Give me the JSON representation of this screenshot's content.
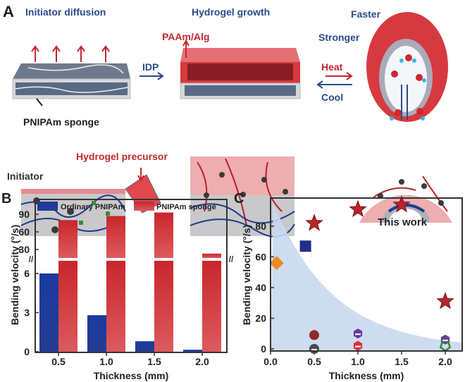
{
  "panel_a": {
    "letter": "A",
    "initiator_diffusion": "Initiator diffusion",
    "hydrogel_growth": "Hydrogel growth",
    "faster": "Faster",
    "stronger": "Stronger",
    "paam_alg": "PAAm/Alg",
    "idp": "IDP",
    "heat": "Heat",
    "cool": "Cool",
    "pnipam_sponge": "PNIPAm sponge",
    "hydrogel_precursor": "Hydrogel precursor",
    "initiator": "Initiator",
    "colors": {
      "blue_text": "#2a4a8c",
      "red_text": "#c0282d",
      "hydrogel": "#e8a0a3",
      "sponge": "#c8c8cc"
    }
  },
  "chart_data": [
    {
      "panel": "B",
      "type": "bar",
      "xlabel": "Thickness (mm)",
      "ylabel": "Bending velocity (°/s)",
      "categories": [
        "0.5",
        "1.0",
        "1.5",
        "2.0"
      ],
      "y_axis_break": true,
      "lower_range": [
        0,
        7
      ],
      "upper_range": [
        15,
        100
      ],
      "lower_ticks": [
        "0",
        "3",
        "6"
      ],
      "upper_ticks": [
        "30",
        "60",
        "90"
      ],
      "legend_position": "top",
      "series": [
        {
          "name": "Ordinary PNIPAm",
          "color": "#1e3a9a",
          "values": [
            6.0,
            2.8,
            0.8,
            0.15
          ]
        },
        {
          "name": "PNIPAm sponge",
          "color": "#d23a3e",
          "values": [
            80,
            87,
            93,
            23
          ]
        }
      ]
    },
    {
      "panel": "C",
      "type": "scatter",
      "xlabel": "Thickness (mm)",
      "ylabel": "Bending velocity (°/s)",
      "xlim": [
        0,
        2.2
      ],
      "ylim": [
        -1.5,
        98
      ],
      "x_ticks": [
        "0.0",
        "0.5",
        "1.0",
        "1.5",
        "2.0"
      ],
      "y_ticks": [
        "0",
        "20",
        "40",
        "60",
        "80"
      ],
      "annotation": "This work",
      "shaded_region_color": "#c9d8ee",
      "series": [
        {
          "marker": "star",
          "color": "#b8242a",
          "points": [
            [
              0.5,
              82
            ],
            [
              1.0,
              91
            ],
            [
              1.5,
              94
            ],
            [
              2.0,
              31
            ]
          ]
        },
        {
          "marker": "square",
          "color": "#1f2f8a",
          "points": [
            [
              0.4,
              67
            ]
          ]
        },
        {
          "marker": "diamond",
          "color": "#f08a24",
          "points": [
            [
              0.07,
              56
            ]
          ]
        },
        {
          "marker": "circle",
          "color": "#8f2a2a",
          "points": [
            [
              0.5,
              9
            ]
          ]
        },
        {
          "marker": "half-circle",
          "color": "#4a4a4a",
          "points": [
            [
              0.5,
              0
            ]
          ]
        },
        {
          "marker": "hexagon",
          "color": "#6a3aa0",
          "points": [
            [
              1.0,
              10
            ],
            [
              2.0,
              6
            ]
          ]
        },
        {
          "marker": "hexagon",
          "color": "#d8323a",
          "points": [
            [
              1.0,
              2
            ]
          ]
        },
        {
          "marker": "pentagon",
          "color": "#2a8a3a",
          "points": [
            [
              2.0,
              2
            ]
          ]
        }
      ]
    }
  ]
}
